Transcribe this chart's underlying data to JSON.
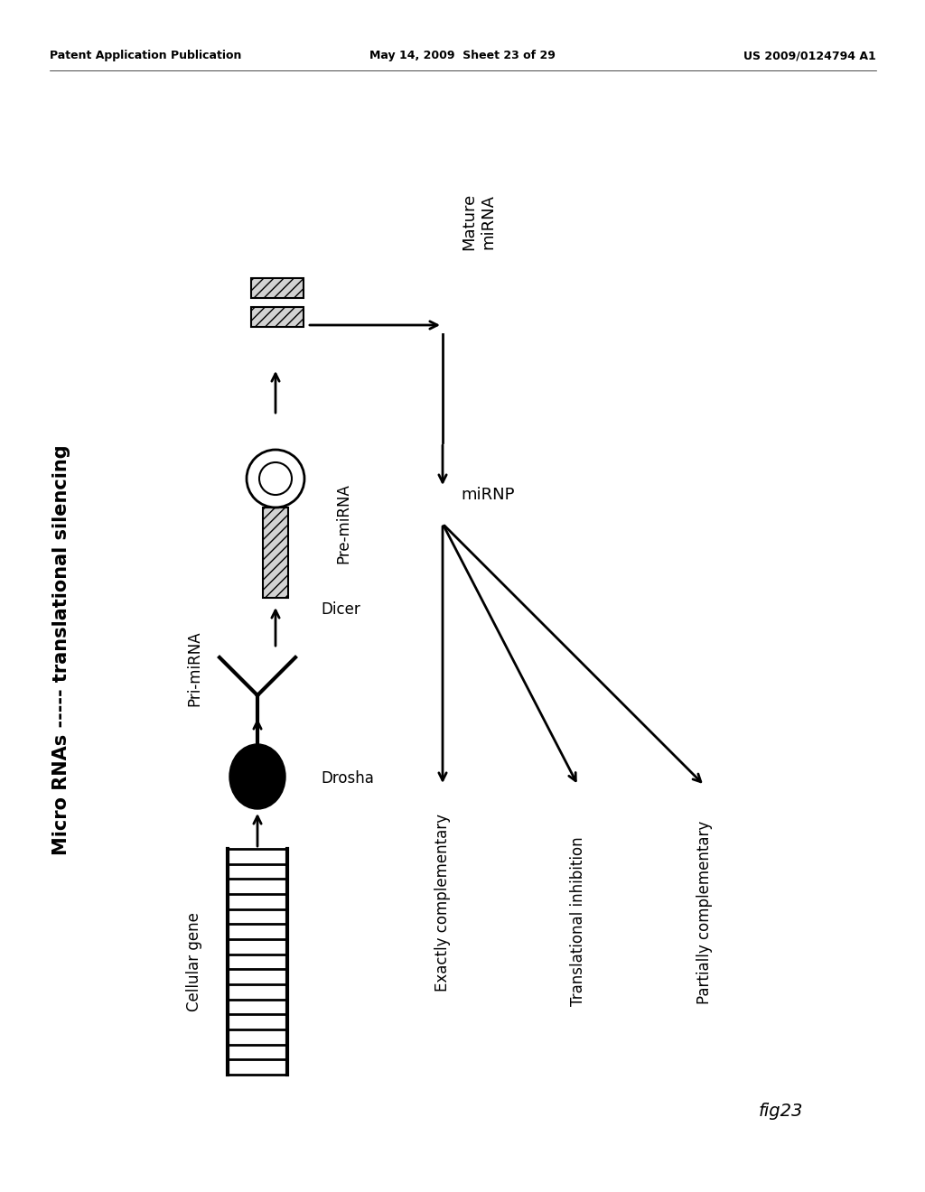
{
  "bg_color": "#ffffff",
  "header_left": "Patent Application Publication",
  "header_mid": "May 14, 2009  Sheet 23 of 29",
  "header_right": "US 2009/0124794 A1",
  "title_text": "Micro RNAs ----- translational silencing",
  "label_cellular_gene": "Cellular gene",
  "label_drosha": "Drosha",
  "label_pri_mirna": "Pri-miRNA",
  "label_dicer": "Dicer",
  "label_pre_mirna": "Pre-miRNA",
  "label_mature_mirna": "Mature\nmiRNA",
  "label_mirnp": "miRNP",
  "label_exactly": "Exactly complementary",
  "label_trans_inhib": "Translational inhibition",
  "label_partially": "Partially complementary",
  "fig_label": "fig23",
  "header_fontsize": 9,
  "title_fontsize": 15,
  "label_fontsize": 12,
  "small_fontsize": 11
}
